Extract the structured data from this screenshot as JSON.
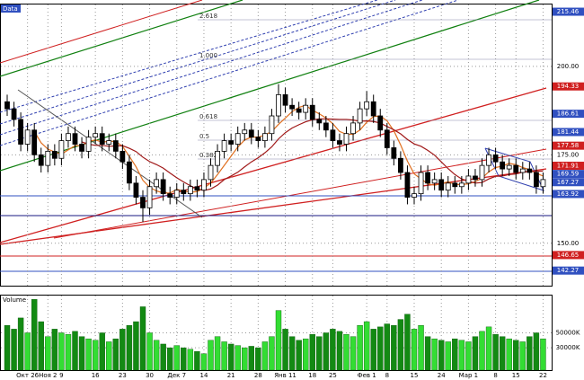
{
  "chart_data": {
    "type": "candlestick",
    "title": "Data",
    "categories": [
      null,
      null,
      null,
      "Окт 26",
      null,
      null,
      "Ноя 2",
      null,
      "9",
      null,
      null,
      null,
      null,
      "16",
      null,
      null,
      null,
      "23",
      null,
      null,
      null,
      "30",
      null,
      null,
      null,
      "Дек 7",
      null,
      null,
      null,
      "14",
      null,
      null,
      null,
      "21",
      null,
      null,
      null,
      "28",
      null,
      null,
      null,
      "Янв 11",
      null,
      null,
      null,
      "18",
      null,
      null,
      "25",
      null,
      null,
      null,
      null,
      "Фев 1",
      null,
      null,
      "8",
      null,
      null,
      null,
      "15",
      null,
      null,
      null,
      "24",
      null,
      null,
      null,
      "Мар 1",
      null,
      null,
      null,
      "8",
      null,
      null,
      "15",
      null,
      null,
      null,
      "22"
    ],
    "open": [
      190,
      188,
      185,
      178,
      182,
      175,
      172,
      176,
      174,
      179,
      181,
      178,
      176,
      180,
      181,
      178,
      179,
      176,
      173,
      167,
      163,
      160,
      166,
      168,
      164,
      163,
      165,
      164,
      166,
      165,
      168,
      172,
      176,
      179,
      178,
      181,
      182,
      180,
      179,
      181,
      186,
      192,
      189,
      188,
      187,
      189,
      185,
      184,
      182,
      179,
      178,
      181,
      184,
      188,
      190,
      186,
      182,
      177,
      174,
      170,
      163,
      164,
      170,
      167,
      168,
      165,
      167,
      166,
      167,
      169,
      168,
      172,
      175,
      173,
      171,
      172,
      170,
      171,
      170,
      166
    ],
    "high": [
      192,
      190,
      187,
      184,
      184,
      177,
      178,
      178,
      181,
      183,
      183,
      180,
      182,
      183,
      183,
      181,
      181,
      178,
      175,
      169,
      165,
      168,
      170,
      170,
      166,
      167,
      167,
      168,
      168,
      170,
      174,
      178,
      181,
      181,
      183,
      184,
      184,
      182,
      183,
      188,
      195,
      194,
      191,
      190,
      191,
      191,
      187,
      186,
      184,
      181,
      183,
      186,
      190,
      193,
      192,
      188,
      184,
      179,
      176,
      172,
      166,
      172,
      172,
      170,
      170,
      169,
      169,
      169,
      171,
      171,
      174,
      177,
      177,
      175,
      174,
      174,
      173,
      173,
      172,
      170
    ],
    "low": [
      186,
      183,
      176,
      176,
      173,
      170,
      170,
      172,
      172,
      177,
      176,
      174,
      174,
      178,
      176,
      176,
      174,
      171,
      165,
      161,
      156,
      158,
      164,
      162,
      161,
      161,
      162,
      162,
      163,
      163,
      166,
      170,
      174,
      176,
      176,
      179,
      178,
      177,
      177,
      179,
      184,
      187,
      186,
      185,
      185,
      183,
      182,
      180,
      177,
      176,
      176,
      179,
      182,
      186,
      184,
      180,
      175,
      172,
      168,
      161,
      161,
      162,
      165,
      165,
      163,
      163,
      164,
      164,
      165,
      166,
      166,
      170,
      171,
      169,
      169,
      168,
      168,
      168,
      164,
      164
    ],
    "close": [
      188,
      185,
      178,
      182,
      175,
      172,
      176,
      174,
      179,
      181,
      178,
      176,
      180,
      181,
      178,
      179,
      176,
      173,
      167,
      163,
      160,
      166,
      168,
      164,
      163,
      165,
      164,
      166,
      165,
      168,
      172,
      176,
      179,
      178,
      181,
      182,
      180,
      179,
      181,
      186,
      192,
      189,
      188,
      187,
      189,
      185,
      184,
      182,
      179,
      178,
      181,
      184,
      188,
      190,
      186,
      182,
      177,
      174,
      170,
      163,
      164,
      170,
      167,
      168,
      165,
      167,
      166,
      167,
      169,
      168,
      172,
      175,
      173,
      171,
      172,
      170,
      171,
      170,
      166,
      168
    ],
    "ylim": [
      138,
      217.5
    ],
    "yticks": [
      {
        "value": 150,
        "label": "150.00"
      },
      {
        "value": 175,
        "label": "175.00"
      },
      {
        "value": 200,
        "label": "200.00"
      }
    ],
    "grid": true,
    "price_labels": [
      {
        "value": 215.46,
        "color": "#3050c0"
      },
      {
        "value": 194.33,
        "color": "#d02020"
      },
      {
        "value": 186.61,
        "color": "#3050c0"
      },
      {
        "value": 181.44,
        "color": "#3050c0"
      },
      {
        "value": 177.58,
        "color": "#d02020"
      },
      {
        "value": 171.91,
        "color": "#d02020"
      },
      {
        "value": 169.59,
        "color": "#3050c0"
      },
      {
        "value": 167.27,
        "color": "#3050c0"
      },
      {
        "value": 163.92,
        "color": "#3050c0"
      },
      {
        "value": 146.65,
        "color": "#d02020"
      },
      {
        "value": 142.27,
        "color": "#3050c0"
      }
    ],
    "fib_labels": [
      "2.618",
      "1.000",
      "0.618",
      "0.5",
      "0.382"
    ],
    "volume": {
      "title": "Volume",
      "up_color": "#33dd33",
      "down_color": "#138a13",
      "values": [
        60000,
        55000,
        70000,
        50000,
        95000,
        65000,
        45000,
        55000,
        50000,
        48000,
        52000,
        45000,
        42000,
        40000,
        50000,
        38000,
        42000,
        55000,
        60000,
        65000,
        85000,
        50000,
        40000,
        35000,
        30000,
        33000,
        30000,
        28000,
        25000,
        22000,
        40000,
        45000,
        38000,
        35000,
        33000,
        30000,
        32000,
        30000,
        38000,
        45000,
        80000,
        55000,
        45000,
        40000,
        42000,
        48000,
        45000,
        50000,
        55000,
        52000,
        48000,
        45000,
        60000,
        65000,
        55000,
        58000,
        62000,
        60000,
        68000,
        75000,
        55000,
        60000,
        45000,
        42000,
        40000,
        38000,
        42000,
        40000,
        38000,
        45000,
        52000,
        58000,
        48000,
        45000,
        42000,
        40000,
        38000,
        45000,
        50000,
        42000
      ],
      "ylim": [
        0,
        100000
      ],
      "yticks": [
        {
          "value": 30000,
          "label": "30000K"
        },
        {
          "value": 50000,
          "label": "50000K"
        }
      ]
    }
  }
}
